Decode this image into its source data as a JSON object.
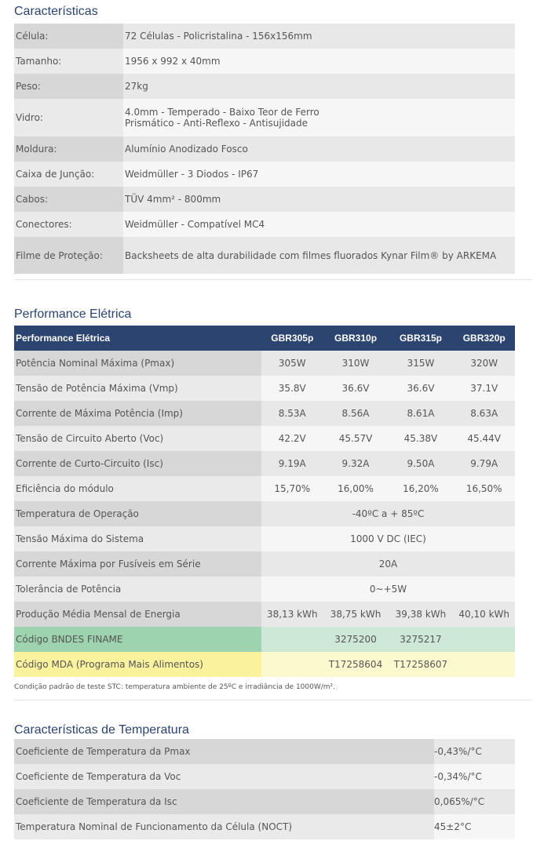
{
  "caracteristicas": {
    "title": "Características",
    "rows": [
      {
        "label": "Célula:",
        "value": "72 Células - Policristalina - 156x156mm"
      },
      {
        "label": "Tamanho:",
        "value": "1956 x 992 x 40mm"
      },
      {
        "label": "Peso:",
        "value": "27kg"
      },
      {
        "label": "Vidro:",
        "value": "4.0mm - Temperado - Baixo Teor de Ferro",
        "value2": "Prismático - Anti-Reflexo - Antisujidade"
      },
      {
        "label": "Moldura:",
        "value": "Alumínio Anodizado Fosco"
      },
      {
        "label": "Caixa de Junção:",
        "value": "Weidmüller - 3 Diodos - IP67"
      },
      {
        "label": "Cabos:",
        "value": "TÜV 4mm² - 800mm"
      },
      {
        "label": "Conectores:",
        "value": "Weidmüller - Compatível MC4"
      },
      {
        "label": "Filme de Proteção:",
        "value": "Backsheets de alta durabilidade com filmes fluorados Kynar Film® by ARKEMA"
      }
    ]
  },
  "performance": {
    "title": "Performance Elétrica",
    "headers": [
      "Performance Elétrica",
      "GBR305p",
      "GBR310p",
      "GBR315p",
      "GBR320p"
    ],
    "rows": [
      {
        "label": "Potência Nominal Máxima (Pmax)",
        "values": [
          "305W",
          "310W",
          "315W",
          "320W"
        ]
      },
      {
        "label": "Tensão de Potência Máxima (Vmp)",
        "values": [
          "35.8V",
          "36.6V",
          "36.6V",
          "37.1V"
        ]
      },
      {
        "label": "Corrente de Máxima Potência (Imp)",
        "values": [
          "8.53A",
          "8.56A",
          "8.61A",
          "8.63A"
        ]
      },
      {
        "label": "Tensão de Circuito Aberto (Voc)",
        "values": [
          "42.2V",
          "45.57V",
          "45.38V",
          "45.44V"
        ]
      },
      {
        "label": "Corrente de Curto-Circuito (Isc)",
        "values": [
          "9.19A",
          "9.32A",
          "9.50A",
          "9.79A"
        ]
      },
      {
        "label": "Eficiência do módulo",
        "values": [
          "15,70%",
          "16,00%",
          "16,20%",
          "16,50%"
        ]
      },
      {
        "label": "Temperatura de Operação",
        "span": "-40ºC a + 85ºC"
      },
      {
        "label": "Tensão Máxima do Sistema",
        "span": "1000 V DC (IEC)"
      },
      {
        "label": "Corrente Máxima por Fusíveis em Série",
        "span": "20A"
      },
      {
        "label": "Tolerância de Potência",
        "span": "0~+5W"
      },
      {
        "label": "Produção Média Mensal de Energia",
        "values": [
          "38,13 kWh",
          "38,75 kWh",
          "39,38 kWh",
          "40,10 kWh"
        ]
      },
      {
        "label": "Código BNDES FINAME",
        "values": [
          "",
          "3275200",
          "3275217",
          ""
        ]
      },
      {
        "label": "Código MDA (Programa Mais Alimentos)",
        "values": [
          "",
          "T17258604",
          "T17258607",
          ""
        ]
      }
    ],
    "note": "Condição padrão de teste STC: temperatura ambiente de 25ºC e irradiância de 1000W/m²."
  },
  "temperatura": {
    "title": "Características de Temperatura",
    "rows": [
      {
        "label": "Coeficiente de Temperatura da Pmax",
        "value": "-0,43%/°C"
      },
      {
        "label": "Coeficiente de Temperatura da Voc",
        "value": "-0,34%/°C"
      },
      {
        "label": "Coeficiente de Temperatura da Isc",
        "value": "0,065%/°C"
      },
      {
        "label": "Temperatura Nominal de Funcionamento da Célula (NOCT)",
        "value": "45±2°C"
      }
    ]
  }
}
